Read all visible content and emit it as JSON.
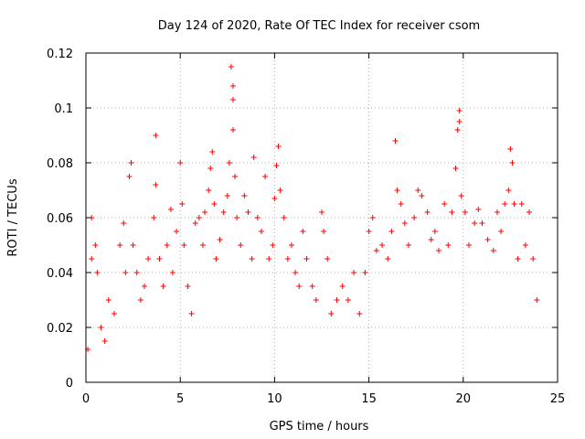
{
  "chart_data": {
    "type": "scatter",
    "title": "Day 124 of 2020, Rate Of TEC Index for receiver csom",
    "xlabel": "GPS time / hours",
    "ylabel": "ROTI / TECUs",
    "xlim": [
      0,
      25
    ],
    "ylim": [
      0,
      0.12
    ],
    "xticks": [
      0,
      5,
      10,
      15,
      20,
      25
    ],
    "xtick_labels": [
      "0",
      "5",
      "10",
      "15",
      "20",
      "25"
    ],
    "yticks": [
      0,
      0.02,
      0.04,
      0.06,
      0.08,
      0.1,
      0.12
    ],
    "ytick_labels": [
      "0",
      "0.02",
      "0.04",
      "0.06",
      "0.08",
      "0.1",
      "0.12"
    ],
    "grid": true,
    "marker": "plus",
    "color": "#ff0000",
    "series": [
      {
        "x": [
          0.1,
          0.3,
          0.3,
          0.5,
          0.6,
          0.8,
          1.0,
          1.2,
          1.5,
          1.8,
          2.0,
          2.1,
          2.3,
          2.4,
          2.5,
          2.7,
          2.9,
          3.1,
          3.3,
          3.6,
          3.7,
          3.7,
          3.9,
          4.1,
          4.3,
          4.5,
          4.6,
          4.8,
          5.0,
          5.1,
          5.2,
          5.4,
          5.6,
          5.8,
          6.0,
          6.2,
          6.3,
          6.5,
          6.6,
          6.7,
          6.8,
          6.9,
          7.1,
          7.3,
          7.5,
          7.6,
          7.7,
          7.8,
          7.8,
          7.8,
          7.9,
          8.0,
          8.2,
          8.4,
          8.6,
          8.8,
          8.9,
          9.1,
          9.3,
          9.5,
          9.7,
          9.9,
          10.0,
          10.1,
          10.2,
          10.3,
          10.5,
          10.7,
          10.9,
          11.1,
          11.3,
          11.5,
          11.7,
          12.0,
          12.2,
          12.5,
          12.6,
          12.8,
          13.0,
          13.3,
          13.6,
          13.9,
          14.2,
          14.5,
          14.8,
          15.0,
          15.2,
          15.4,
          15.7,
          16.0,
          16.2,
          16.4,
          16.5,
          16.7,
          16.9,
          17.1,
          17.4,
          17.6,
          17.8,
          18.1,
          18.3,
          18.5,
          18.7,
          19.0,
          19.2,
          19.4,
          19.6,
          19.7,
          19.8,
          19.8,
          19.9,
          20.1,
          20.3,
          20.6,
          20.8,
          21.0,
          21.3,
          21.6,
          21.8,
          22.0,
          22.2,
          22.4,
          22.5,
          22.6,
          22.7,
          22.9,
          23.1,
          23.3,
          23.5,
          23.7,
          23.9
        ],
        "y": [
          0.012,
          0.045,
          0.06,
          0.05,
          0.04,
          0.02,
          0.015,
          0.03,
          0.025,
          0.05,
          0.058,
          0.04,
          0.075,
          0.08,
          0.05,
          0.04,
          0.03,
          0.035,
          0.045,
          0.06,
          0.09,
          0.072,
          0.045,
          0.035,
          0.05,
          0.063,
          0.04,
          0.055,
          0.08,
          0.065,
          0.05,
          0.035,
          0.025,
          0.058,
          0.06,
          0.05,
          0.062,
          0.07,
          0.078,
          0.084,
          0.065,
          0.045,
          0.052,
          0.062,
          0.068,
          0.08,
          0.115,
          0.108,
          0.103,
          0.092,
          0.075,
          0.06,
          0.05,
          0.068,
          0.062,
          0.045,
          0.082,
          0.06,
          0.055,
          0.075,
          0.045,
          0.05,
          0.067,
          0.079,
          0.086,
          0.07,
          0.06,
          0.045,
          0.05,
          0.04,
          0.035,
          0.055,
          0.045,
          0.035,
          0.03,
          0.062,
          0.055,
          0.045,
          0.025,
          0.03,
          0.035,
          0.03,
          0.04,
          0.025,
          0.04,
          0.055,
          0.06,
          0.048,
          0.05,
          0.045,
          0.055,
          0.088,
          0.07,
          0.065,
          0.058,
          0.05,
          0.06,
          0.07,
          0.068,
          0.062,
          0.052,
          0.055,
          0.048,
          0.065,
          0.05,
          0.062,
          0.078,
          0.092,
          0.099,
          0.095,
          0.068,
          0.062,
          0.05,
          0.058,
          0.063,
          0.058,
          0.052,
          0.048,
          0.062,
          0.055,
          0.065,
          0.07,
          0.085,
          0.08,
          0.065,
          0.045,
          0.065,
          0.05,
          0.062,
          0.045,
          0.03
        ]
      }
    ]
  }
}
